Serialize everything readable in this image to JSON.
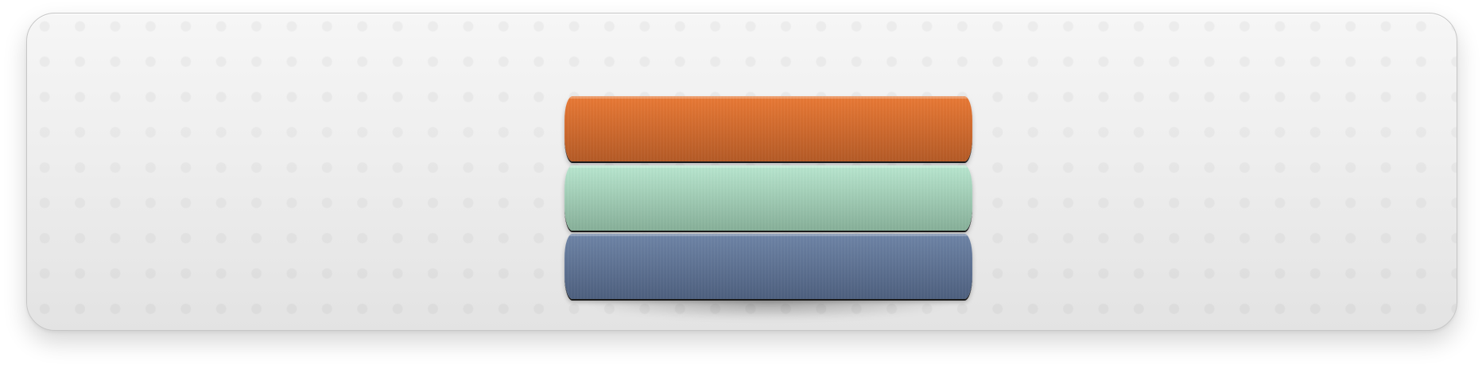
{
  "colors": {
    "background": "#ffffff",
    "panel_top": "#f6f6f6",
    "panel_bottom": "#e3e3e3",
    "panel_border": "#c6c6c6"
  },
  "stack": {
    "books": [
      {
        "name": "orange-book",
        "color_top": "#e97935",
        "color_bottom": "#b45a26"
      },
      {
        "name": "mint-book",
        "color_top": "#b8e6cf",
        "color_bottom": "#86af98"
      },
      {
        "name": "slate-book",
        "color_top": "#6e84a6",
        "color_bottom": "#4d5f7e"
      }
    ]
  }
}
